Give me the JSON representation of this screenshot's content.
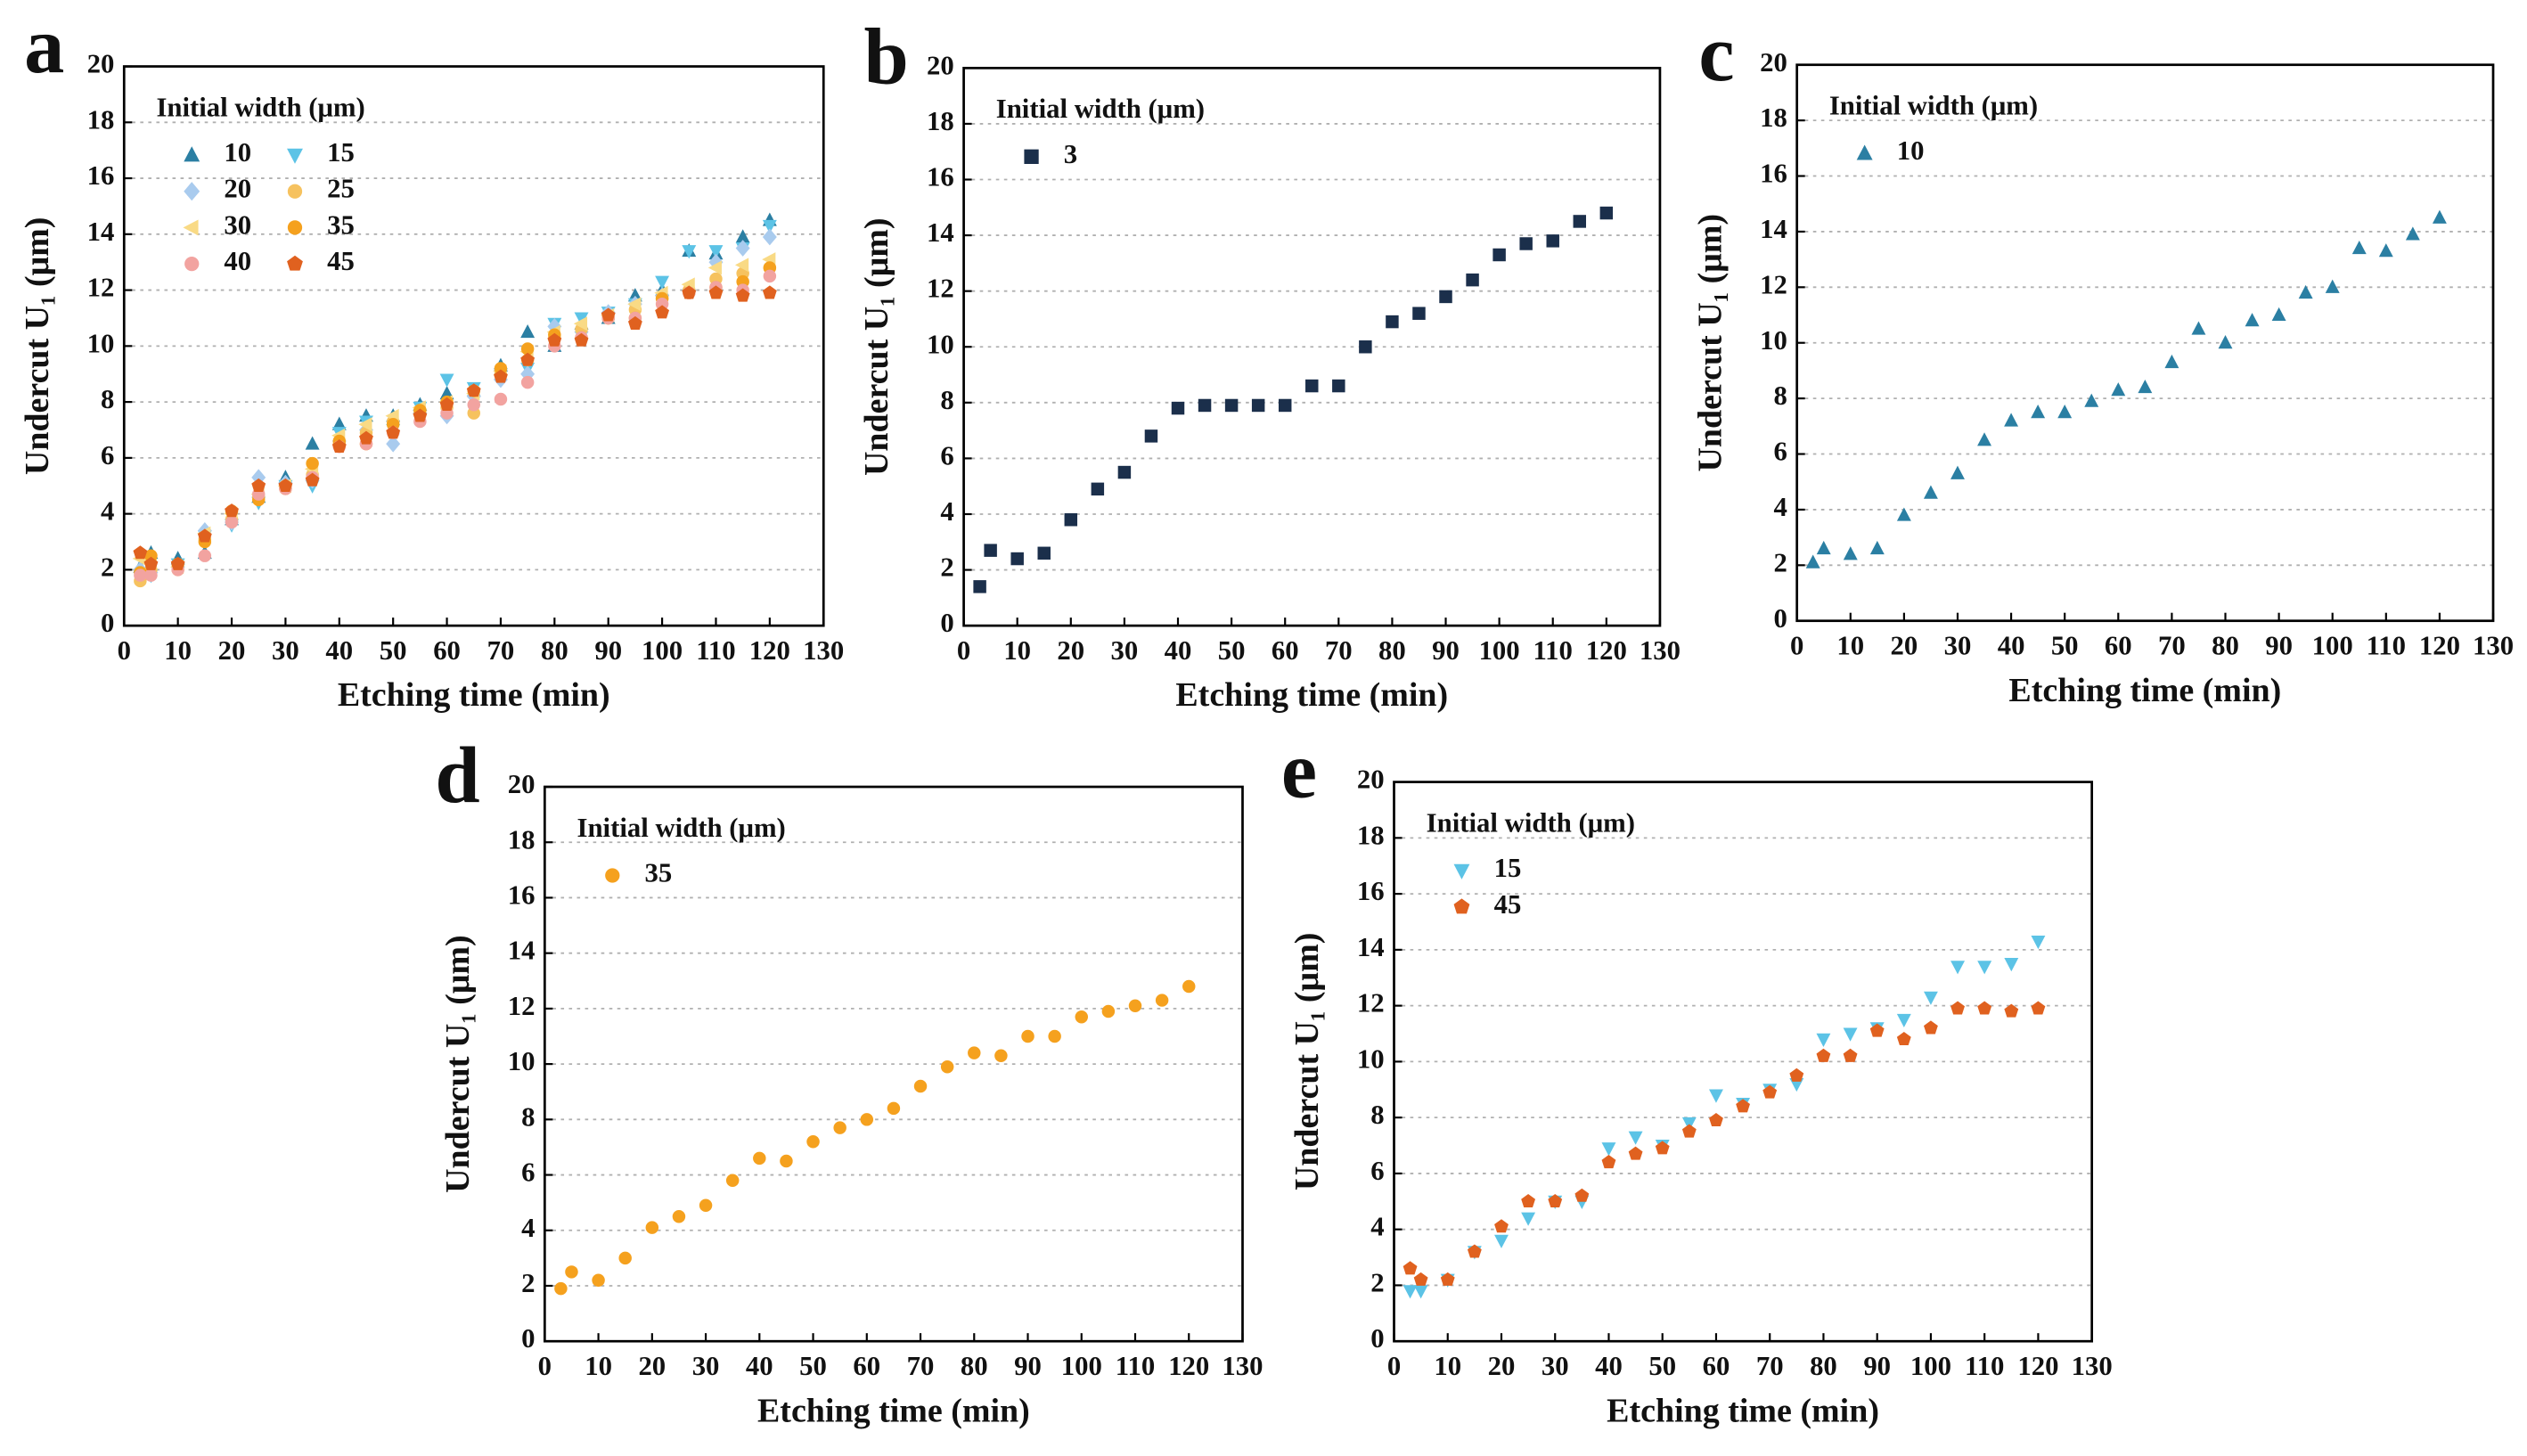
{
  "chart_data": [
    {
      "type": "scatter",
      "label": "a",
      "xlabel": "Etching time (min)",
      "ylabel": "Undercut U₁ (μm)",
      "legend_title": "Initial width (μm)",
      "xlim": [
        0,
        130
      ],
      "xticks": [
        0,
        10,
        20,
        30,
        40,
        50,
        60,
        70,
        80,
        90,
        100,
        110,
        120,
        130
      ],
      "ylim": [
        0,
        20
      ],
      "yticks": [
        0,
        2,
        4,
        6,
        8,
        10,
        12,
        14,
        16,
        18,
        20
      ],
      "grid": true,
      "x": [
        3,
        5,
        10,
        15,
        20,
        25,
        30,
        35,
        40,
        45,
        50,
        55,
        60,
        65,
        70,
        75,
        80,
        85,
        90,
        95,
        100,
        105,
        110,
        115,
        120
      ],
      "series": [
        {
          "name": "10",
          "color": "#2b7fa3",
          "marker": "triangle-up",
          "values": [
            2.1,
            2.6,
            2.4,
            2.6,
            3.8,
            4.6,
            5.3,
            6.5,
            7.2,
            7.5,
            7.5,
            7.9,
            8.3,
            8.4,
            9.3,
            10.5,
            10.0,
            10.8,
            11.0,
            11.8,
            12.0,
            13.4,
            13.3,
            13.9,
            14.5
          ]
        },
        {
          "name": "15",
          "color": "#5cc3e6",
          "marker": "triangle-down",
          "values": [
            1.8,
            1.8,
            2.2,
            3.2,
            3.6,
            4.4,
            5.0,
            5.0,
            6.9,
            7.3,
            7.0,
            7.8,
            8.8,
            8.5,
            9.0,
            9.2,
            10.8,
            11.0,
            11.2,
            11.5,
            12.3,
            13.4,
            13.4,
            13.5,
            14.3
          ]
        },
        {
          "name": "20",
          "color": "#a9cbee",
          "marker": "diamond",
          "values": [
            2.0,
            1.9,
            2.1,
            3.4,
            3.7,
            5.3,
            5.1,
            5.2,
            6.6,
            7.0,
            6.5,
            7.6,
            7.5,
            8.2,
            8.8,
            9.0,
            10.7,
            10.5,
            11.2,
            11.5,
            11.8,
            12.0,
            13.0,
            13.5,
            13.9
          ]
        },
        {
          "name": "25",
          "color": "#f6c25f",
          "marker": "circle",
          "values": [
            1.6,
            2.0,
            2.0,
            3.1,
            3.8,
            4.6,
            5.0,
            5.4,
            6.5,
            6.9,
            7.3,
            7.7,
            7.8,
            7.6,
            9.0,
            9.5,
            10.3,
            10.6,
            11.0,
            11.3,
            11.7,
            12.0,
            12.4,
            12.6,
            12.8
          ]
        },
        {
          "name": "30",
          "color": "#f9da85",
          "marker": "triangle-left",
          "values": [
            2.4,
            2.3,
            2.1,
            3.3,
            4.0,
            4.7,
            5.0,
            5.6,
            6.8,
            7.2,
            7.5,
            7.8,
            8.0,
            8.3,
            9.1,
            9.8,
            10.5,
            10.8,
            11.1,
            11.5,
            11.9,
            12.2,
            12.8,
            12.9,
            13.1
          ]
        },
        {
          "name": "35",
          "color": "#f5a11e",
          "marker": "circle",
          "values": [
            1.9,
            2.5,
            2.2,
            3.0,
            4.1,
            4.5,
            4.9,
            5.8,
            6.6,
            6.5,
            7.2,
            7.7,
            8.0,
            8.4,
            9.2,
            9.9,
            10.4,
            10.3,
            11.0,
            11.0,
            11.7,
            11.9,
            12.1,
            12.3,
            12.8
          ]
        },
        {
          "name": "40",
          "color": "#f2a3a0",
          "marker": "circle",
          "values": [
            1.8,
            1.8,
            2.0,
            2.5,
            3.7,
            4.7,
            4.9,
            5.3,
            6.4,
            6.5,
            6.9,
            7.3,
            7.6,
            7.9,
            8.1,
            8.7,
            10.0,
            10.3,
            11.0,
            11.0,
            11.5,
            11.9,
            12.1,
            12.0,
            12.5
          ]
        },
        {
          "name": "45",
          "color": "#e0611f",
          "marker": "pentagon",
          "values": [
            2.6,
            2.2,
            2.2,
            3.2,
            4.1,
            5.0,
            5.0,
            5.2,
            6.4,
            6.7,
            6.9,
            7.5,
            7.9,
            8.4,
            8.9,
            9.5,
            10.2,
            10.2,
            11.1,
            10.8,
            11.2,
            11.9,
            11.9,
            11.8,
            11.9
          ]
        }
      ]
    },
    {
      "type": "scatter",
      "label": "b",
      "xlabel": "Etching time (min)",
      "ylabel": "Undercut U₁ (μm)",
      "legend_title": "Initial width (μm)",
      "xlim": [
        0,
        130
      ],
      "xticks": [
        0,
        10,
        20,
        30,
        40,
        50,
        60,
        70,
        80,
        90,
        100,
        110,
        120,
        130
      ],
      "ylim": [
        0,
        20
      ],
      "yticks": [
        0,
        2,
        4,
        6,
        8,
        10,
        12,
        14,
        16,
        18,
        20
      ],
      "grid": true,
      "x": [
        3,
        5,
        10,
        15,
        20,
        25,
        30,
        35,
        40,
        45,
        50,
        55,
        60,
        65,
        70,
        75,
        80,
        85,
        90,
        95,
        100,
        105,
        110,
        115,
        120
      ],
      "series": [
        {
          "name": "3",
          "color": "#1b2f4b",
          "marker": "square",
          "values": [
            1.4,
            2.7,
            2.4,
            2.6,
            3.8,
            4.9,
            5.5,
            6.8,
            7.8,
            7.9,
            7.9,
            7.9,
            7.9,
            8.6,
            8.6,
            10.0,
            10.9,
            11.2,
            11.8,
            12.4,
            13.3,
            13.7,
            13.8,
            14.5,
            14.8
          ]
        }
      ]
    },
    {
      "type": "scatter",
      "label": "c",
      "xlabel": "Etching time (min)",
      "ylabel": "Undercut U₁ (μm)",
      "legend_title": "Initial width (μm)",
      "xlim": [
        0,
        130
      ],
      "xticks": [
        0,
        10,
        20,
        30,
        40,
        50,
        60,
        70,
        80,
        90,
        100,
        110,
        120,
        130
      ],
      "ylim": [
        0,
        20
      ],
      "yticks": [
        0,
        2,
        4,
        6,
        8,
        10,
        12,
        14,
        16,
        18,
        20
      ],
      "grid": true,
      "x": [
        3,
        5,
        10,
        15,
        20,
        25,
        30,
        35,
        40,
        45,
        50,
        55,
        60,
        65,
        70,
        75,
        80,
        85,
        90,
        95,
        100,
        105,
        110,
        115,
        120
      ],
      "series": [
        {
          "name": "10",
          "color": "#2b7fa3",
          "marker": "triangle-up",
          "values": [
            2.1,
            2.6,
            2.4,
            2.6,
            3.8,
            4.6,
            5.3,
            6.5,
            7.2,
            7.5,
            7.5,
            7.9,
            8.3,
            8.4,
            9.3,
            10.5,
            10.0,
            10.8,
            11.0,
            11.8,
            12.0,
            13.4,
            13.3,
            13.9,
            14.5
          ]
        }
      ]
    },
    {
      "type": "scatter",
      "label": "d",
      "xlabel": "Etching time (min)",
      "ylabel": "Undercut U₁ (μm)",
      "legend_title": "Initial width (μm)",
      "xlim": [
        0,
        130
      ],
      "xticks": [
        0,
        10,
        20,
        30,
        40,
        50,
        60,
        70,
        80,
        90,
        100,
        110,
        120,
        130
      ],
      "ylim": [
        0,
        20
      ],
      "yticks": [
        0,
        2,
        4,
        6,
        8,
        10,
        12,
        14,
        16,
        18,
        20
      ],
      "grid": true,
      "x": [
        3,
        5,
        10,
        15,
        20,
        25,
        30,
        35,
        40,
        45,
        50,
        55,
        60,
        65,
        70,
        75,
        80,
        85,
        90,
        95,
        100,
        105,
        110,
        115,
        120
      ],
      "series": [
        {
          "name": "35",
          "color": "#f5a11e",
          "marker": "circle",
          "values": [
            1.9,
            2.5,
            2.2,
            3.0,
            4.1,
            4.5,
            4.9,
            5.8,
            6.6,
            6.5,
            7.2,
            7.7,
            8.0,
            8.4,
            9.2,
            9.9,
            10.4,
            10.3,
            11.0,
            11.0,
            11.7,
            11.9,
            12.1,
            12.3,
            12.8
          ]
        }
      ]
    },
    {
      "type": "scatter",
      "label": "e",
      "xlabel": "Etching time (min)",
      "ylabel": "Undercut U₁ (μm)",
      "legend_title": "Initial width (μm)",
      "xlim": [
        0,
        130
      ],
      "xticks": [
        0,
        10,
        20,
        30,
        40,
        50,
        60,
        70,
        80,
        90,
        100,
        110,
        120,
        130
      ],
      "ylim": [
        0,
        20
      ],
      "yticks": [
        0,
        2,
        4,
        6,
        8,
        10,
        12,
        14,
        16,
        18,
        20
      ],
      "grid": true,
      "x": [
        3,
        5,
        10,
        15,
        20,
        25,
        30,
        35,
        40,
        45,
        50,
        55,
        60,
        65,
        70,
        75,
        80,
        85,
        90,
        95,
        100,
        105,
        110,
        115,
        120
      ],
      "series": [
        {
          "name": "15",
          "color": "#5cc3e6",
          "marker": "triangle-down",
          "values": [
            1.8,
            1.8,
            2.2,
            3.2,
            3.6,
            4.4,
            5.0,
            5.0,
            6.9,
            7.3,
            7.0,
            7.8,
            8.8,
            8.5,
            9.0,
            9.2,
            10.8,
            11.0,
            11.2,
            11.5,
            12.3,
            13.4,
            13.4,
            13.5,
            14.3
          ]
        },
        {
          "name": "45",
          "color": "#e0611f",
          "marker": "pentagon",
          "values": [
            2.6,
            2.2,
            2.2,
            3.2,
            4.1,
            5.0,
            5.0,
            5.2,
            6.4,
            6.7,
            6.9,
            7.5,
            7.9,
            8.4,
            8.9,
            9.5,
            10.2,
            10.2,
            11.1,
            10.8,
            11.2,
            11.9,
            11.9,
            11.8,
            11.9
          ]
        }
      ]
    }
  ]
}
